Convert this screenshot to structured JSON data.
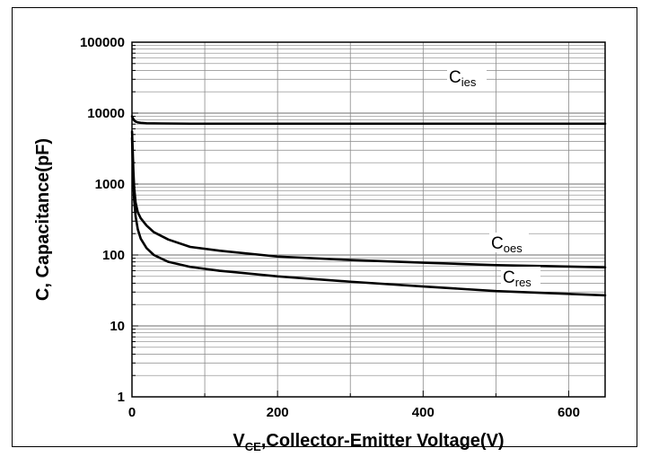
{
  "chart_data": {
    "type": "line",
    "title": "",
    "xlabel": {
      "main": "V",
      "sub": "CE",
      "rest": ",Collector-Emitter Voltage(V)"
    },
    "ylabel": "C, Capacitance(pF)",
    "xlim": [
      0,
      650
    ],
    "ylim": [
      1,
      100000
    ],
    "yscale": "log",
    "grid": true,
    "x_ticks": [
      0,
      200,
      400,
      600
    ],
    "x_tick_labels": [
      "0",
      "200",
      "400",
      "600"
    ],
    "y_ticks": [
      1,
      10,
      100,
      1000,
      10000,
      100000
    ],
    "y_tick_labels": [
      "1",
      "10",
      "100",
      "1000",
      "10000",
      "100000"
    ],
    "series": [
      {
        "name": "Cies",
        "label_main": "C",
        "label_sub": "ies",
        "x": [
          0.1,
          1,
          2,
          3,
          5,
          8,
          12,
          20,
          40,
          80,
          150,
          300,
          450,
          650
        ],
        "y": [
          9000,
          8600,
          8200,
          7900,
          7600,
          7400,
          7300,
          7200,
          7150,
          7100,
          7100,
          7100,
          7100,
          7100
        ]
      },
      {
        "name": "Coes",
        "label_main": "C",
        "label_sub": "oes",
        "x": [
          0.1,
          1,
          2,
          3,
          5,
          8,
          12,
          20,
          30,
          50,
          80,
          120,
          200,
          300,
          400,
          500,
          650
        ],
        "y": [
          5500,
          3000,
          1500,
          900,
          550,
          400,
          330,
          260,
          210,
          165,
          130,
          115,
          95,
          85,
          78,
          72,
          67
        ]
      },
      {
        "name": "Cres",
        "label_main": "C",
        "label_sub": "res",
        "x": [
          0.1,
          1,
          2,
          3,
          5,
          8,
          12,
          20,
          30,
          50,
          80,
          120,
          200,
          300,
          400,
          500,
          650
        ],
        "y": [
          4500,
          2000,
          1000,
          600,
          350,
          230,
          170,
          125,
          100,
          80,
          68,
          60,
          50,
          42,
          36,
          31,
          27
        ]
      }
    ]
  }
}
